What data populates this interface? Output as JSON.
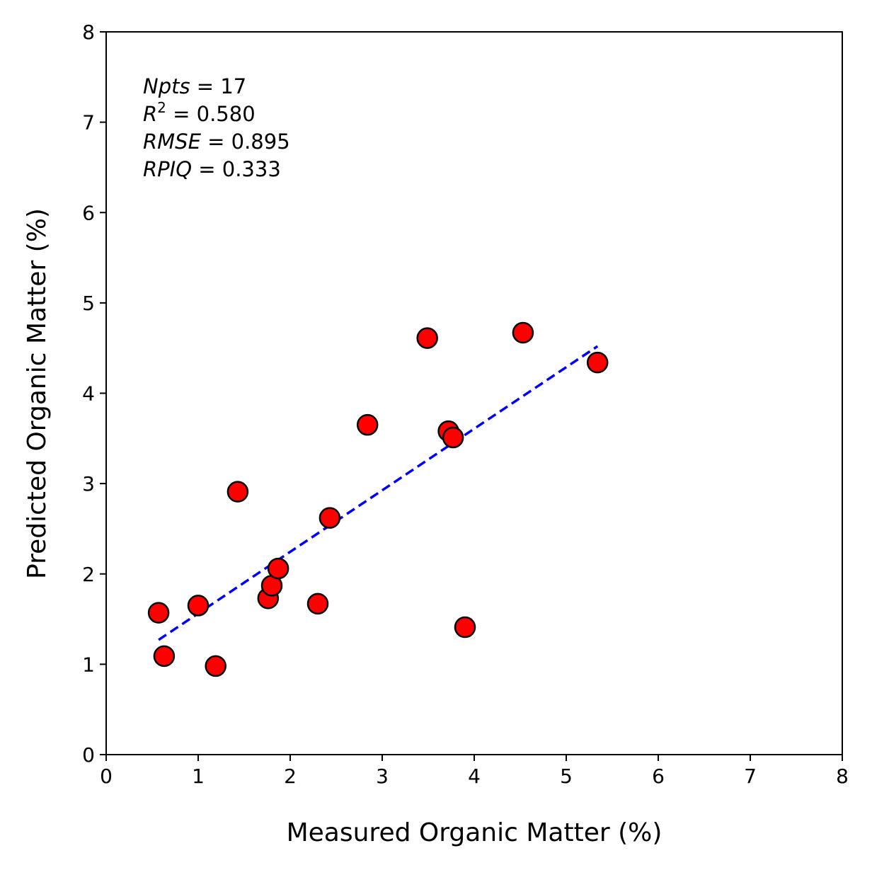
{
  "chart_data": {
    "type": "scatter",
    "xlabel": "Measured Organic Matter (%)",
    "ylabel": "Predicted Organic Matter (%)",
    "xlim": [
      0,
      8
    ],
    "ylim": [
      0,
      8
    ],
    "xticks": [
      0,
      1,
      2,
      3,
      4,
      5,
      6,
      7,
      8
    ],
    "yticks": [
      0,
      1,
      2,
      3,
      4,
      5,
      6,
      7,
      8
    ],
    "grid": false,
    "points": [
      {
        "x": 0.57,
        "y": 1.57
      },
      {
        "x": 0.63,
        "y": 1.09
      },
      {
        "x": 1.0,
        "y": 1.65
      },
      {
        "x": 1.19,
        "y": 0.98
      },
      {
        "x": 1.43,
        "y": 2.91
      },
      {
        "x": 1.76,
        "y": 1.73
      },
      {
        "x": 1.8,
        "y": 1.87
      },
      {
        "x": 1.87,
        "y": 2.06
      },
      {
        "x": 2.3,
        "y": 1.67
      },
      {
        "x": 2.43,
        "y": 2.62
      },
      {
        "x": 2.84,
        "y": 3.65
      },
      {
        "x": 3.49,
        "y": 4.61
      },
      {
        "x": 3.72,
        "y": 3.58
      },
      {
        "x": 3.77,
        "y": 3.51
      },
      {
        "x": 3.9,
        "y": 1.41
      },
      {
        "x": 4.53,
        "y": 4.67
      },
      {
        "x": 5.34,
        "y": 4.34
      }
    ],
    "fit_line": {
      "x": [
        0.57,
        5.34
      ],
      "y": [
        1.27,
        4.52
      ]
    },
    "colors": {
      "point_fill": "#ff0000",
      "point_edge": "#000000",
      "fit_line": "#0000ff"
    },
    "annotations": [
      {
        "var": "Npts",
        "sup": "",
        "value": "17"
      },
      {
        "var": "R",
        "sup": "2",
        "value": "0.580"
      },
      {
        "var": "RMSE",
        "sup": "",
        "value": "0.895"
      },
      {
        "var": "RPIQ",
        "sup": "",
        "value": "0.333"
      }
    ]
  }
}
